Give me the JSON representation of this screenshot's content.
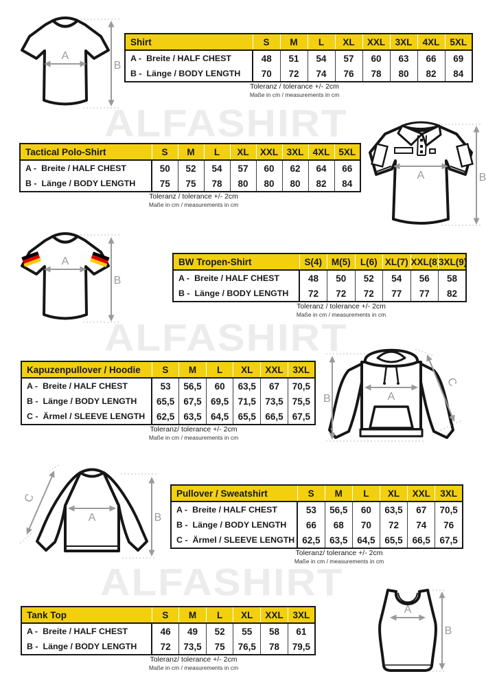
{
  "page": {
    "watermark_text": "ALFASHIRT"
  },
  "dim_labels": {
    "a": "A",
    "b": "B",
    "c": "C"
  },
  "colors": {
    "header_yellow": "#F2D00F",
    "border_black": "#181818",
    "arrow_gray": "#9a9a9a",
    "flag_black": "#000000",
    "flag_red": "#DD0000",
    "flag_gold": "#FFCC00"
  },
  "sections": [
    {
      "title": "Shirt",
      "illustration": "t-shirt",
      "sizes": [
        "S",
        "M",
        "L",
        "XL",
        "XXL",
        "3XL",
        "4XL",
        "5XL"
      ],
      "rows": [
        {
          "prefix": "A -",
          "label": "Breite / HALF CHEST",
          "values": [
            "48",
            "51",
            "54",
            "57",
            "60",
            "63",
            "66",
            "69"
          ]
        },
        {
          "prefix": "B -",
          "label": "Länge / BODY LENGTH",
          "values": [
            "70",
            "72",
            "74",
            "76",
            "78",
            "80",
            "82",
            "84"
          ]
        }
      ],
      "tolerance_note": "Toleranz / tolerance +/- 2cm",
      "units_note": "Maße in cm / measurements in cm"
    },
    {
      "title": "Tactical Polo-Shirt",
      "illustration": "tactical-polo-shirt",
      "sizes": [
        "S",
        "M",
        "L",
        "XL",
        "XXL",
        "3XL",
        "4XL",
        "5XL"
      ],
      "rows": [
        {
          "prefix": "A -",
          "label": "Breite / HALF CHEST",
          "values": [
            "50",
            "52",
            "54",
            "57",
            "60",
            "62",
            "64",
            "66"
          ]
        },
        {
          "prefix": "B -",
          "label": "Länge / BODY LENGTH",
          "values": [
            "75",
            "75",
            "78",
            "80",
            "80",
            "80",
            "82",
            "84"
          ]
        }
      ],
      "tolerance_note": "Toleranz / tolerance +/- 2cm",
      "units_note": "Maße in cm / measurements in cm"
    },
    {
      "title": "BW Tropen-Shirt",
      "illustration": "t-shirt-german-flag",
      "sizes": [
        "S(4)",
        "M(5)",
        "L(6)",
        "XL(7)",
        "XXL(8)",
        "3XL(9)"
      ],
      "rows": [
        {
          "prefix": "A -",
          "label": "Breite / HALF CHEST",
          "values": [
            "48",
            "50",
            "52",
            "54",
            "56",
            "58"
          ]
        },
        {
          "prefix": "B -",
          "label": "Länge / BODY LENGTH",
          "values": [
            "72",
            "72",
            "72",
            "77",
            "77",
            "82"
          ]
        }
      ],
      "tolerance_note": "Toleranz / tolerance +/- 2cm",
      "units_note": "Maße in cm / measurements in cm"
    },
    {
      "title": "Kapuzenpullover / Hoodie",
      "illustration": "hoodie",
      "sizes": [
        "S",
        "M",
        "L",
        "XL",
        "XXL",
        "3XL"
      ],
      "rows": [
        {
          "prefix": "A -",
          "label": "Breite / HALF CHEST",
          "values": [
            "53",
            "56,5",
            "60",
            "63,5",
            "67",
            "70,5"
          ]
        },
        {
          "prefix": "B -",
          "label": "Länge / BODY LENGTH",
          "values": [
            "65,5",
            "67,5",
            "69,5",
            "71,5",
            "73,5",
            "75,5"
          ]
        },
        {
          "prefix": "C -",
          "label": "Ärmel / SLEEVE LENGTH",
          "values": [
            "62,5",
            "63,5",
            "64,5",
            "65,5",
            "66,5",
            "67,5"
          ]
        }
      ],
      "tolerance_note": "Toleranz/ tolerance +/- 2cm",
      "units_note": "Maße in cm / measurements in cm"
    },
    {
      "title": "Pullover / Sweatshirt",
      "illustration": "sweatshirt",
      "sizes": [
        "S",
        "M",
        "L",
        "XL",
        "XXL",
        "3XL"
      ],
      "rows": [
        {
          "prefix": "A -",
          "label": "Breite / HALF CHEST",
          "values": [
            "53",
            "56,5",
            "60",
            "63,5",
            "67",
            "70,5"
          ]
        },
        {
          "prefix": "B -",
          "label": "Länge / BODY LENGTH",
          "values": [
            "66",
            "68",
            "70",
            "72",
            "74",
            "76"
          ]
        },
        {
          "prefix": "C -",
          "label": "Ärmel / SLEEVE LENGTH",
          "values": [
            "62,5",
            "63,5",
            "64,5",
            "65,5",
            "66,5",
            "67,5"
          ]
        }
      ],
      "tolerance_note": "Toleranz/ tolerance +/- 2cm",
      "units_note": "Maße in cm / measurements in cm"
    },
    {
      "title": "Tank Top",
      "illustration": "tank-top",
      "sizes": [
        "S",
        "M",
        "L",
        "XL",
        "XXL",
        "3XL"
      ],
      "rows": [
        {
          "prefix": "A -",
          "label": "Breite / HALF CHEST",
          "values": [
            "46",
            "49",
            "52",
            "55",
            "58",
            "61"
          ]
        },
        {
          "prefix": "B -",
          "label": "Länge / BODY LENGTH",
          "values": [
            "72",
            "73,5",
            "75",
            "76,5",
            "78",
            "79,5"
          ]
        }
      ],
      "tolerance_note": "Toleranz/ tolerance +/- 2cm",
      "units_note": "Maße in cm / measurements in cm"
    }
  ]
}
